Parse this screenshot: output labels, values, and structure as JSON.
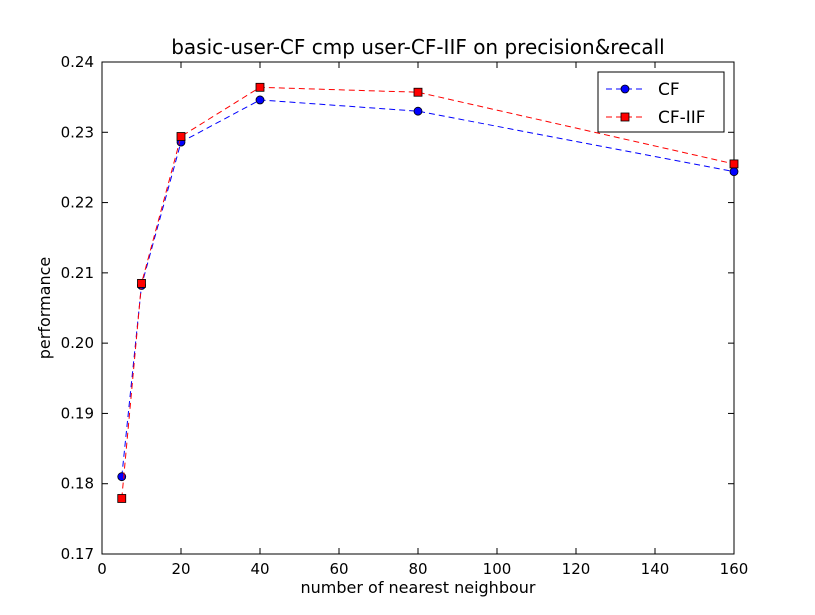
{
  "chart_data": {
    "type": "line",
    "title": "basic-user-CF cmp user-CF-IIF on precision&recall",
    "xlabel": "number of nearest neighbour",
    "ylabel": "performance",
    "xlim": [
      0,
      160
    ],
    "ylim": [
      0.17,
      0.24
    ],
    "xticks": [
      0,
      20,
      40,
      60,
      80,
      100,
      120,
      140,
      160
    ],
    "xtick_labels": [
      "0",
      "20",
      "40",
      "60",
      "80",
      "100",
      "120",
      "140",
      "160"
    ],
    "yticks": [
      0.17,
      0.18,
      0.19,
      0.2,
      0.21,
      0.22,
      0.23,
      0.24
    ],
    "ytick_labels": [
      "0.17",
      "0.18",
      "0.19",
      "0.20",
      "0.21",
      "0.22",
      "0.23",
      "0.24"
    ],
    "grid": false,
    "legend_position": "top-right",
    "series": [
      {
        "name": "CF",
        "color": "#0000ff",
        "marker": "circle",
        "linestyle": "dashed",
        "x": [
          5,
          10,
          20,
          40,
          80,
          160
        ],
        "y": [
          0.181,
          0.2082,
          0.2286,
          0.2346,
          0.233,
          0.2244
        ]
      },
      {
        "name": "CF-IIF",
        "color": "#ff0000",
        "marker": "square",
        "linestyle": "dashed",
        "x": [
          5,
          10,
          20,
          40,
          80,
          160
        ],
        "y": [
          0.1779,
          0.2085,
          0.2294,
          0.2364,
          0.2357,
          0.2255
        ]
      }
    ]
  }
}
